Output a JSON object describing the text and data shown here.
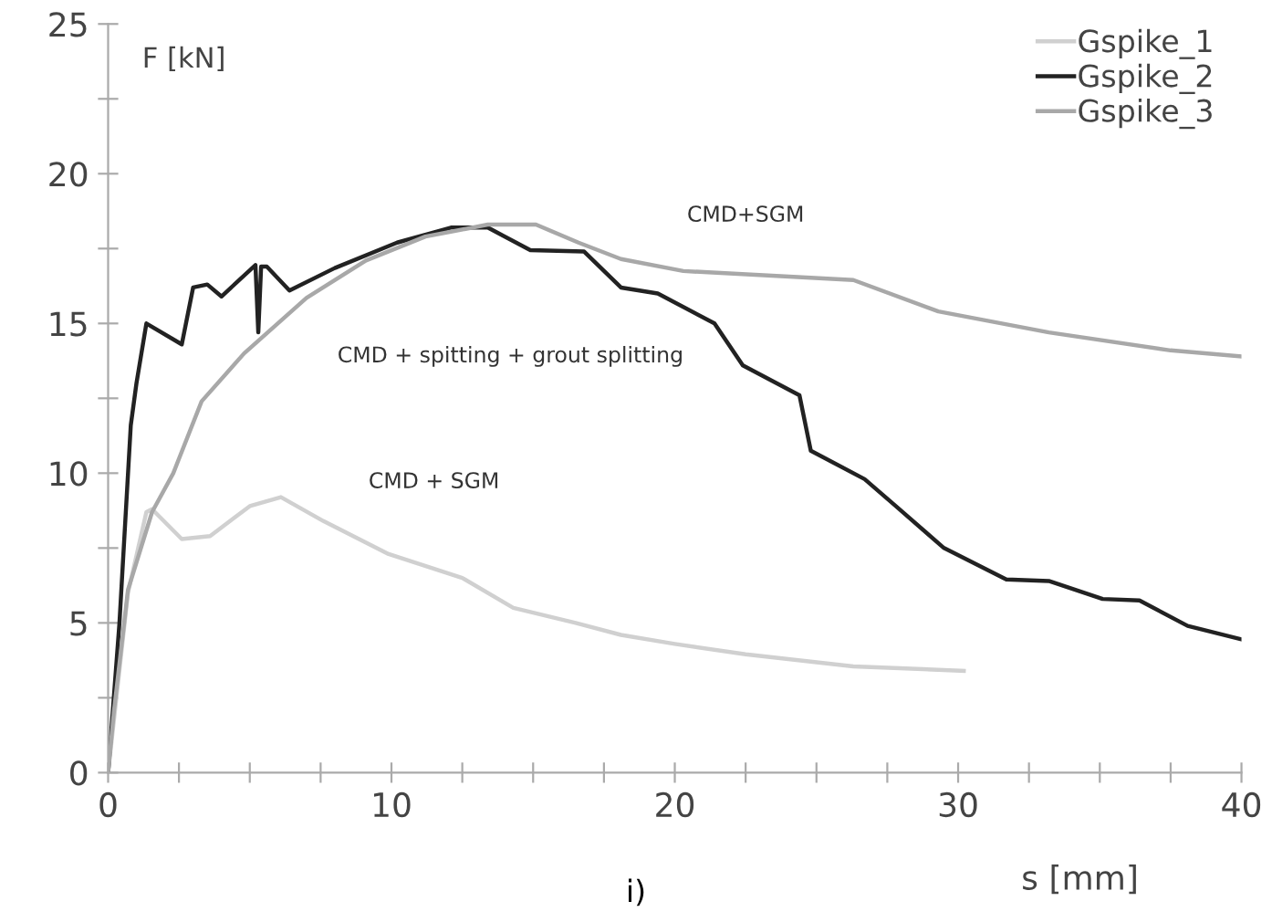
{
  "chart_data": {
    "type": "line",
    "xlabel": "s [mm]",
    "ylabel": "F [kN]",
    "xlim": [
      0,
      40
    ],
    "ylim": [
      0,
      25
    ],
    "xticks": [
      0,
      {
        "value": 2.5,
        "label": null
      },
      {
        "value": 5,
        "label": null
      },
      {
        "value": 7.5,
        "label": null
      },
      10,
      {
        "value": 12.5,
        "label": null
      },
      {
        "value": 15,
        "label": null
      },
      {
        "value": 17.5,
        "label": null
      },
      20,
      {
        "value": 22.5,
        "label": null
      },
      {
        "value": 25,
        "label": null
      },
      {
        "value": 27.5,
        "label": null
      },
      30,
      {
        "value": 32.5,
        "label": null
      },
      {
        "value": 35,
        "label": null
      },
      {
        "value": 37.5,
        "label": null
      },
      40
    ],
    "yticks": [
      0,
      {
        "value": 2.5,
        "label": null
      },
      5,
      {
        "value": 7.5,
        "label": null
      },
      10,
      {
        "value": 12.5,
        "label": null
      },
      15,
      {
        "value": 17.5,
        "label": null
      },
      20,
      {
        "value": 22.5,
        "label": null
      },
      25
    ],
    "grid": false,
    "legend": "top right",
    "marker": "none",
    "line_style": "solid",
    "series": [
      {
        "name": "Gspike_1",
        "color": "#d0d0d0",
        "x": [
          0,
          0.7,
          1.35,
          1.55,
          2.6,
          3.6,
          5.0,
          6.1,
          7.6,
          9.9,
          12.5,
          14.3,
          16.5,
          18.1,
          20.0,
          22.5,
          26.3,
          30.2
        ],
        "values": [
          0,
          6.0,
          8.7,
          8.8,
          7.8,
          7.9,
          8.9,
          9.2,
          8.4,
          7.3,
          6.5,
          5.5,
          5.0,
          4.6,
          4.3,
          3.95,
          3.55,
          3.4
        ]
      },
      {
        "name": "Gspike_2",
        "color": "#222222",
        "x": [
          0,
          0.4,
          0.8,
          1.0,
          1.35,
          2.6,
          3.0,
          3.5,
          4.0,
          5.2,
          5.3,
          5.4,
          5.6,
          6.4,
          8.0,
          10.2,
          12.1,
          13.4,
          14.9,
          16.8,
          18.1,
          19.4,
          21.4,
          22.4,
          24.4,
          24.8,
          26.7,
          27.8,
          29.5,
          31.7,
          33.2,
          35.1,
          36.4,
          38.1,
          40.0
        ],
        "values": [
          0,
          5.0,
          11.6,
          13.0,
          15.0,
          14.3,
          16.2,
          16.3,
          15.9,
          16.95,
          14.7,
          16.9,
          16.9,
          16.1,
          16.85,
          17.7,
          18.2,
          18.2,
          17.45,
          17.4,
          16.2,
          16.0,
          15.0,
          13.6,
          12.6,
          10.75,
          9.8,
          8.9,
          7.5,
          6.45,
          6.4,
          5.8,
          5.75,
          4.9,
          4.45
        ]
      },
      {
        "name": "Gspike_3",
        "color": "#a8a8a8",
        "x": [
          0,
          0.2,
          0.7,
          1.55,
          2.3,
          3.3,
          4.8,
          7.0,
          9.1,
          11.2,
          13.4,
          15.1,
          16.6,
          18.1,
          20.3,
          26.3,
          29.3,
          33.2,
          37.5,
          40.0
        ],
        "values": [
          0,
          2.0,
          6.1,
          8.7,
          10.0,
          12.4,
          14.0,
          15.85,
          17.1,
          17.9,
          18.3,
          18.3,
          17.7,
          17.15,
          16.75,
          16.45,
          15.4,
          14.7,
          14.1,
          13.9
        ]
      }
    ],
    "annotations": [
      "CMD+SGM",
      "CMD + spitting + grout splitting",
      "CMD + SGM",
      "i)"
    ]
  }
}
